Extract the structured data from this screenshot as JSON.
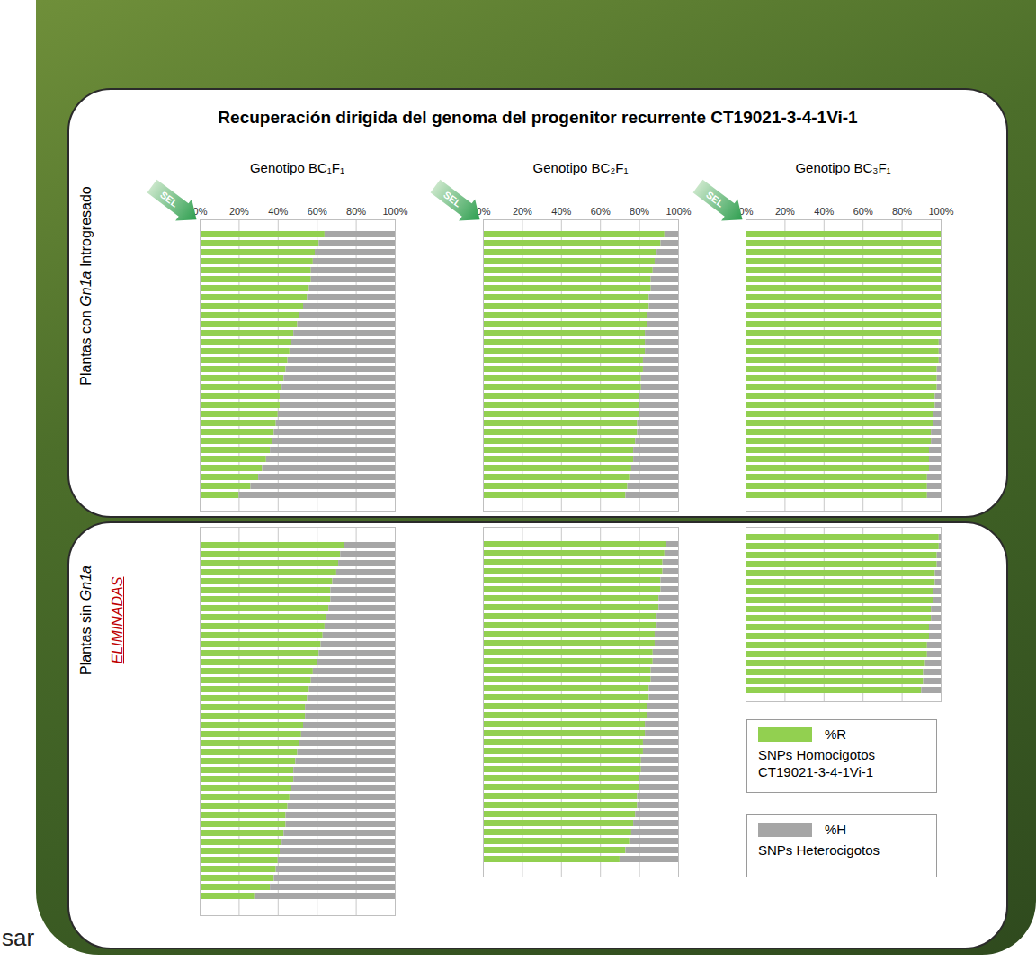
{
  "title": "Recuperación dirigida del genoma del progenitor recurrente CT19021-3-4-1Vi-1",
  "row_labels": [
    [
      "Plantas con ",
      "Gn1a",
      " Introgresado"
    ],
    [
      "Plantas sin ",
      "Gn1a"
    ]
  ],
  "eliminated_label": "ELIMINADAS",
  "selection_label": "SEL",
  "legend": "bottom-right",
  "legend_descriptions": [
    [
      "SNPs Homocigotos",
      "CT19021-3-4-1Vi-1"
    ],
    [
      "SNPs Heterocigotos"
    ]
  ],
  "footer_fragment": "sar",
  "chart_data": [
    {
      "type": "bar",
      "orientation": "horizontal",
      "stacked": true,
      "grid": true,
      "tick_labels": "x",
      "title": "Genotipo BC₁F₁",
      "xlim": [
        0,
        100
      ],
      "xticks": [
        {
          "value": 0,
          "label": "0%"
        },
        {
          "value": 20,
          "label": "20%"
        },
        {
          "value": 40,
          "label": "40%"
        },
        {
          "value": 60,
          "label": "60%"
        },
        {
          "value": 80,
          "label": "80%"
        },
        {
          "value": 100,
          "label": "100%"
        }
      ],
      "groups": [
        {
          "series": [
            {
              "name": "%R",
              "color": "#92d050",
              "values": [
                64,
                61,
                59,
                58,
                57,
                57,
                56,
                55,
                53,
                51,
                50,
                48,
                47,
                46,
                45,
                44,
                43,
                42,
                41,
                41,
                40,
                39,
                38,
                37,
                36,
                34,
                32,
                30,
                26,
                20
              ]
            },
            {
              "name": "%H",
              "color": "#a6a6a6",
              "values": [
                36,
                39,
                41,
                42,
                43,
                43,
                44,
                45,
                47,
                49,
                50,
                52,
                53,
                54,
                55,
                56,
                57,
                58,
                59,
                59,
                60,
                61,
                62,
                63,
                64,
                66,
                68,
                70,
                74,
                80
              ]
            }
          ]
        },
        {
          "series": [
            {
              "name": "%R",
              "color": "#92d050",
              "values": [
                74,
                72,
                71,
                70,
                68,
                67,
                67,
                66,
                65,
                64,
                63,
                62,
                61,
                60,
                58,
                57,
                56,
                55,
                54,
                54,
                53,
                52,
                51,
                50,
                49,
                48,
                48,
                47,
                46,
                45,
                44,
                44,
                43,
                42,
                41,
                40,
                39,
                38,
                36,
                28
              ]
            },
            {
              "name": "%H",
              "color": "#a6a6a6",
              "values": [
                26,
                28,
                29,
                30,
                32,
                33,
                33,
                34,
                35,
                36,
                37,
                38,
                39,
                40,
                42,
                43,
                44,
                45,
                46,
                46,
                47,
                48,
                49,
                50,
                51,
                52,
                52,
                53,
                54,
                55,
                56,
                56,
                57,
                58,
                59,
                60,
                61,
                62,
                64,
                72
              ]
            }
          ]
        }
      ]
    },
    {
      "type": "bar",
      "orientation": "horizontal",
      "stacked": true,
      "grid": true,
      "tick_labels": "x",
      "title": "Genotipo BC₂F₁",
      "xlim": [
        0,
        100
      ],
      "xticks": [
        {
          "value": 0,
          "label": "0%"
        },
        {
          "value": 20,
          "label": "20%"
        },
        {
          "value": 40,
          "label": "40%"
        },
        {
          "value": 60,
          "label": "60%"
        },
        {
          "value": 80,
          "label": "80%"
        },
        {
          "value": 100,
          "label": "100%"
        }
      ],
      "groups": [
        {
          "series": [
            {
              "name": "%R",
              "color": "#92d050",
              "values": [
                93,
                91,
                89,
                88,
                87,
                86,
                86,
                85,
                85,
                84,
                84,
                83,
                83,
                83,
                82,
                82,
                81,
                81,
                80,
                80,
                80,
                79,
                79,
                78,
                77,
                77,
                76,
                75,
                74,
                73
              ]
            },
            {
              "name": "%H",
              "color": "#a6a6a6",
              "values": [
                7,
                9,
                11,
                12,
                13,
                14,
                14,
                15,
                15,
                16,
                16,
                17,
                17,
                17,
                18,
                18,
                19,
                19,
                20,
                20,
                20,
                21,
                21,
                22,
                23,
                23,
                24,
                25,
                26,
                27
              ]
            }
          ]
        },
        {
          "series": [
            {
              "name": "%R",
              "color": "#92d050",
              "values": [
                94,
                93,
                92,
                92,
                91,
                91,
                90,
                90,
                89,
                89,
                88,
                88,
                87,
                87,
                86,
                86,
                85,
                85,
                84,
                84,
                83,
                83,
                82,
                82,
                81,
                81,
                80,
                80,
                79,
                79,
                78,
                77,
                76,
                75,
                73,
                70
              ]
            },
            {
              "name": "%H",
              "color": "#a6a6a6",
              "values": [
                6,
                7,
                8,
                8,
                9,
                9,
                10,
                10,
                11,
                11,
                12,
                12,
                13,
                13,
                14,
                14,
                15,
                15,
                16,
                16,
                17,
                17,
                18,
                18,
                19,
                19,
                20,
                20,
                21,
                21,
                22,
                23,
                24,
                25,
                27,
                30
              ]
            }
          ]
        }
      ]
    },
    {
      "type": "bar",
      "orientation": "horizontal",
      "stacked": true,
      "grid": true,
      "tick_labels": "x",
      "title": "Genotipo BC₃F₁",
      "xlim": [
        0,
        100
      ],
      "xticks": [
        {
          "value": 0,
          "label": "0%"
        },
        {
          "value": 20,
          "label": "20%"
        },
        {
          "value": 40,
          "label": "40%"
        },
        {
          "value": 60,
          "label": "60%"
        },
        {
          "value": 80,
          "label": "80%"
        },
        {
          "value": 100,
          "label": "100%"
        }
      ],
      "groups": [
        {
          "series": [
            {
              "name": "%R",
              "color": "#92d050",
              "values": [
                100,
                100,
                100,
                100,
                100,
                100,
                100,
                100,
                100,
                100,
                100,
                100,
                99,
                99,
                99,
                98,
                98,
                98,
                97,
                97,
                96,
                96,
                95,
                95,
                94,
                94,
                94,
                93,
                93,
                93
              ]
            },
            {
              "name": "%H",
              "color": "#a6a6a6",
              "values": [
                0,
                0,
                0,
                0,
                0,
                0,
                0,
                0,
                0,
                0,
                0,
                0,
                1,
                1,
                1,
                2,
                2,
                2,
                3,
                3,
                4,
                4,
                5,
                5,
                6,
                6,
                6,
                7,
                7,
                7
              ]
            }
          ]
        },
        {
          "series": [
            {
              "name": "%R",
              "color": "#92d050",
              "values": [
                99,
                99,
                98,
                98,
                97,
                97,
                96,
                96,
                95,
                95,
                94,
                94,
                93,
                93,
                92,
                91,
                91,
                90
              ]
            },
            {
              "name": "%H",
              "color": "#a6a6a6",
              "values": [
                1,
                1,
                2,
                2,
                3,
                3,
                4,
                4,
                5,
                5,
                6,
                6,
                7,
                7,
                8,
                9,
                9,
                10
              ]
            }
          ]
        }
      ]
    }
  ]
}
